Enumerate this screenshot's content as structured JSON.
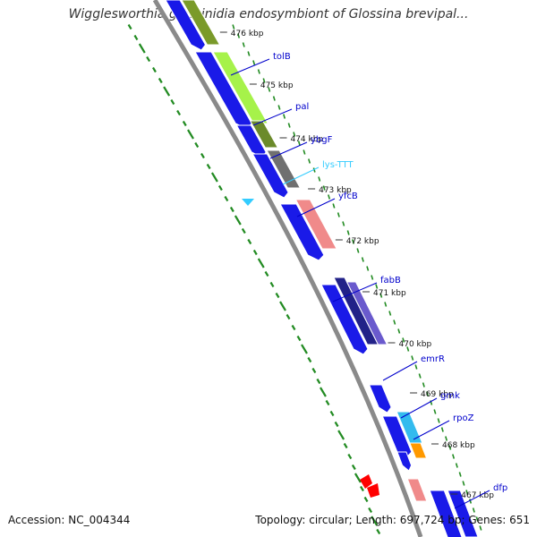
{
  "title": "Wigglesworthia glossinidia endosymbiont of Glossina brevipal...",
  "footer": {
    "accession": "Accession: NC_004344",
    "stats": "Topology: circular; Length: 697,724 bp; Genes: 651"
  },
  "colors": {
    "backbone": "#888888",
    "forward_cds": "#0000ee",
    "rna": "#33ccff",
    "gc_ticks": "#228b22"
  },
  "kbp_marks": [
    "476 kbp",
    "475 kbp",
    "474 kbp",
    "473 kbp",
    "472 kbp",
    "471 kbp",
    "470 kbp",
    "469 kbp",
    "468 kbp",
    "467 kbp"
  ],
  "gene_labels": [
    {
      "name": "tolB",
      "color": "#0000cc"
    },
    {
      "name": "pal",
      "color": "#0000cc"
    },
    {
      "name": "ybgF",
      "color": "#0000cc"
    },
    {
      "name": "lys-TTT",
      "color": "#33ccff"
    },
    {
      "name": "yfcB",
      "color": "#0000cc"
    },
    {
      "name": "fabB",
      "color": "#0000cc"
    },
    {
      "name": "emrR",
      "color": "#0000cc"
    },
    {
      "name": "gmk",
      "color": "#0000cc"
    },
    {
      "name": "rpoZ",
      "color": "#0000cc"
    },
    {
      "name": "dfp",
      "color": "#0000cc"
    }
  ]
}
